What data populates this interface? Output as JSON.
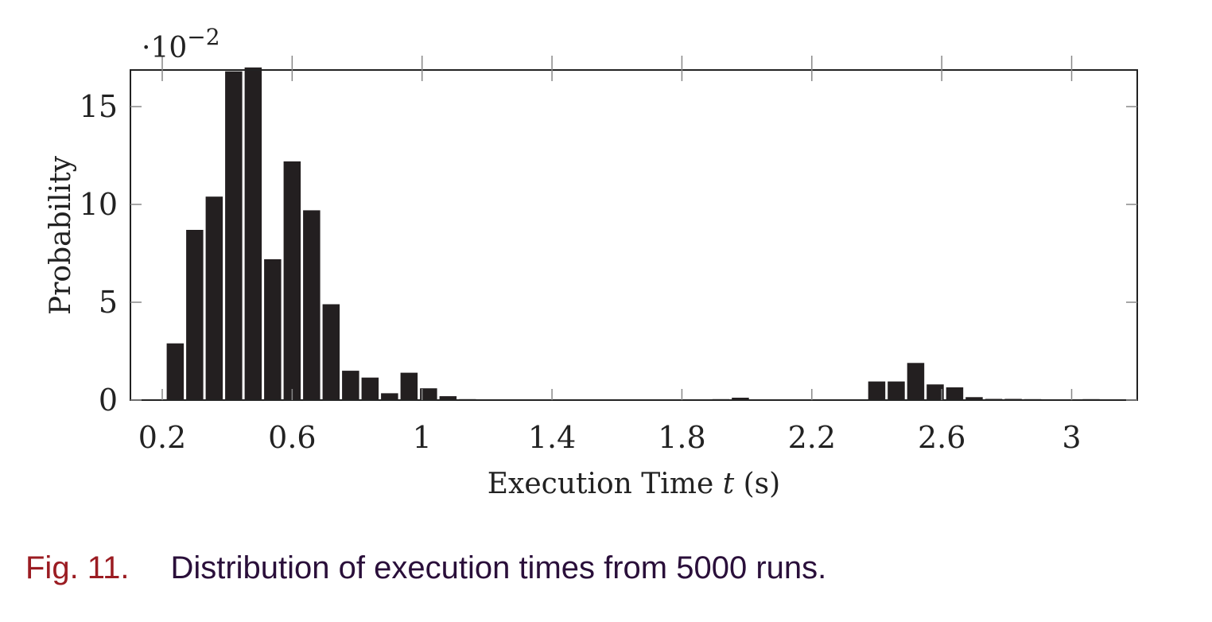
{
  "chart_data": {
    "type": "bar",
    "xlabel_prefix": "Execution Time ",
    "xlabel_var": "t",
    "xlabel_suffix": " (s)",
    "ylabel": "Probability",
    "y_multiplier_label": "·10",
    "y_multiplier_exp": "−2",
    "xlim": [
      0.2,
      3.2
    ],
    "ylim": [
      0,
      17
    ],
    "xticks": [
      "0.2",
      "0.6",
      "1",
      "1.4",
      "1.8",
      "2.2",
      "2.6",
      "3"
    ],
    "yticks": [
      "0",
      "5",
      "10",
      "15"
    ],
    "bin_width": 0.06,
    "bins": [
      {
        "x": 0.24,
        "y": 2.9
      },
      {
        "x": 0.3,
        "y": 8.7
      },
      {
        "x": 0.36,
        "y": 10.4
      },
      {
        "x": 0.42,
        "y": 16.8
      },
      {
        "x": 0.48,
        "y": 17.0
      },
      {
        "x": 0.54,
        "y": 7.2
      },
      {
        "x": 0.6,
        "y": 12.2
      },
      {
        "x": 0.66,
        "y": 9.7
      },
      {
        "x": 0.72,
        "y": 4.9
      },
      {
        "x": 0.78,
        "y": 1.5
      },
      {
        "x": 0.84,
        "y": 1.15
      },
      {
        "x": 0.9,
        "y": 0.35
      },
      {
        "x": 0.96,
        "y": 1.4
      },
      {
        "x": 1.02,
        "y": 0.6
      },
      {
        "x": 1.08,
        "y": 0.2
      },
      {
        "x": 1.14,
        "y": 0.05
      },
      {
        "x": 1.92,
        "y": 0.05
      },
      {
        "x": 1.98,
        "y": 0.12
      },
      {
        "x": 2.1,
        "y": 0.04
      },
      {
        "x": 2.16,
        "y": 0.04
      },
      {
        "x": 2.4,
        "y": 0.95
      },
      {
        "x": 2.46,
        "y": 0.95
      },
      {
        "x": 2.52,
        "y": 1.9
      },
      {
        "x": 2.58,
        "y": 0.8
      },
      {
        "x": 2.64,
        "y": 0.65
      },
      {
        "x": 2.7,
        "y": 0.15
      },
      {
        "x": 2.76,
        "y": 0.06
      },
      {
        "x": 2.82,
        "y": 0.06
      },
      {
        "x": 2.88,
        "y": 0.05
      },
      {
        "x": 3.06,
        "y": 0.05
      }
    ],
    "bar_color": "#231f20",
    "grid": false
  },
  "caption": {
    "label": "Fig. 11.",
    "text": "Distribution of execution times from 5000 runs.",
    "label_color": "#9b1c22",
    "text_color": "#2a0f3a"
  }
}
